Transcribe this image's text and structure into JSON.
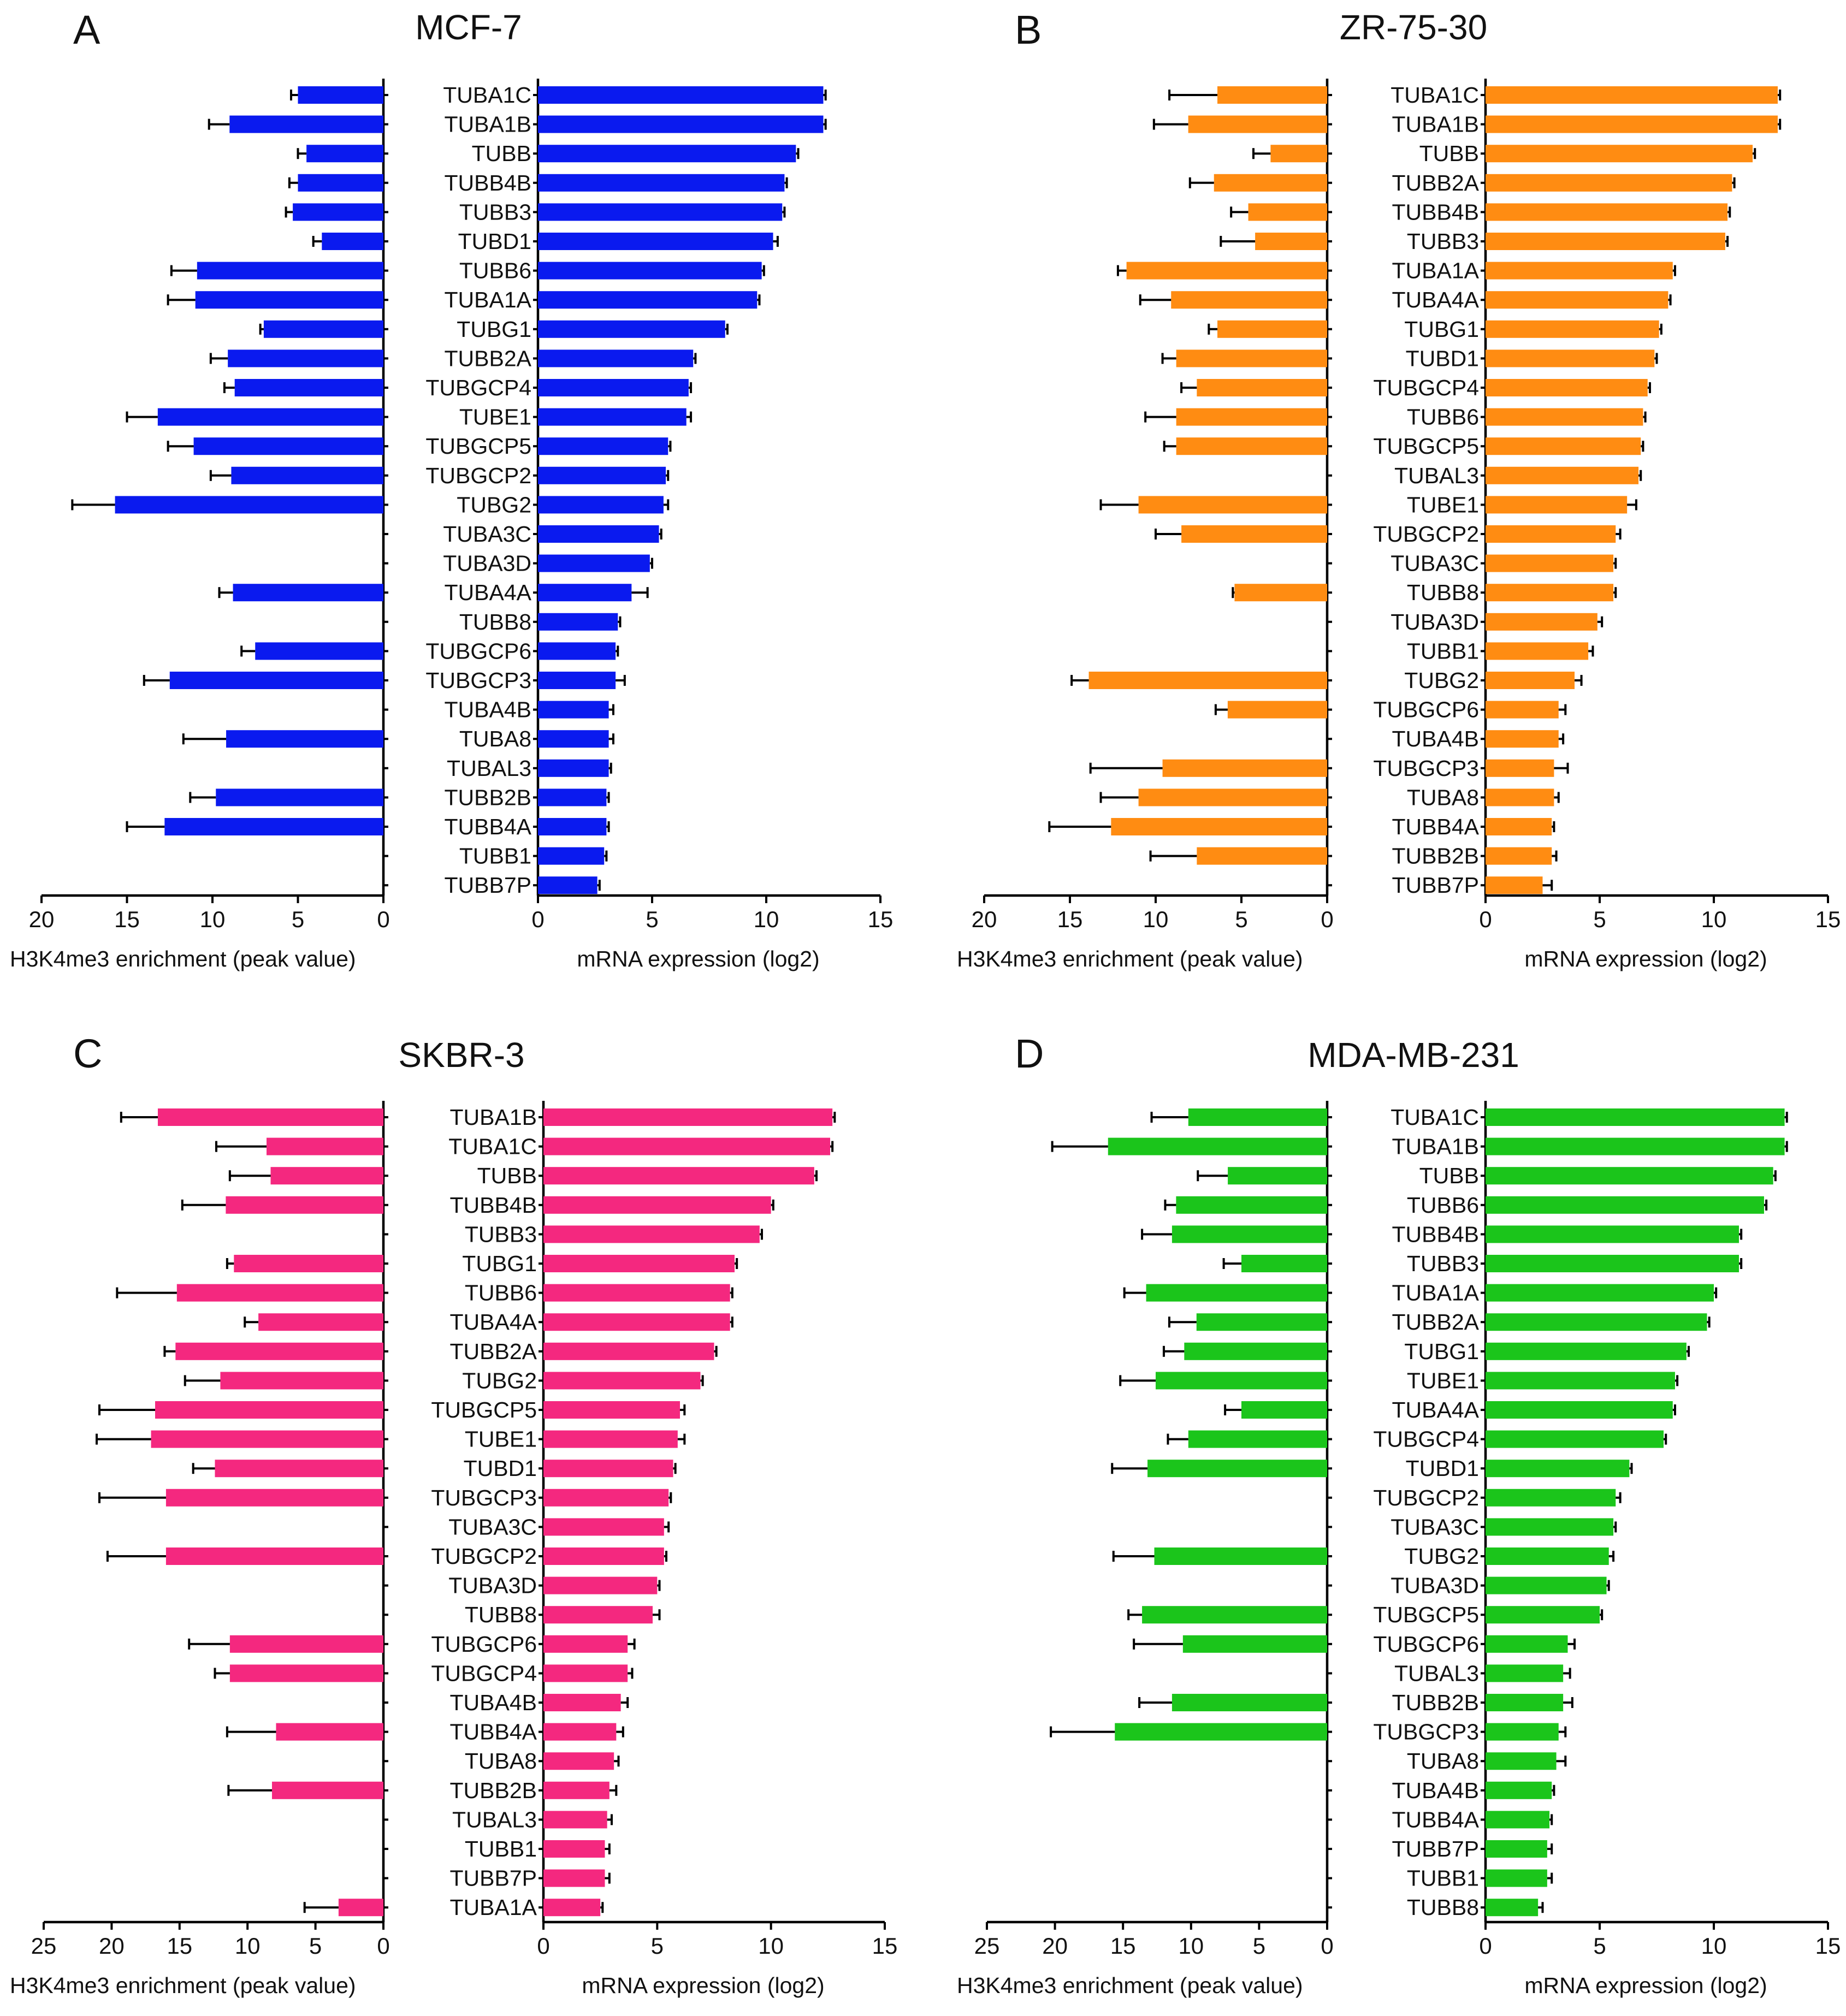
{
  "chart_data": [
    {
      "type": "bar",
      "panel": "A",
      "title": "MCF-7",
      "color": "#0a1aef",
      "left_xlabel": "H3K4me3 enrichment (peak value)",
      "right_xlabel": "mRNA expression (log2)",
      "left_xlim": [
        0,
        20
      ],
      "left_ticks": [
        "20",
        "15",
        "10",
        "5",
        "0"
      ],
      "right_xlim": [
        0,
        15
      ],
      "right_ticks": [
        "0",
        "5",
        "10",
        "15"
      ],
      "categories": [
        "TUBA1C",
        "TUBA1B",
        "TUBB",
        "TUBB4B",
        "TUBB3",
        "TUBD1",
        "TUBB6",
        "TUBA1A",
        "TUBG1",
        "TUBB2A",
        "TUBGCP4",
        "TUBE1",
        "TUBGCP5",
        "TUBGCP2",
        "TUBG2",
        "TUBA3C",
        "TUBA3D",
        "TUBA4A",
        "TUBB8",
        "TUBGCP6",
        "TUBGCP3",
        "TUBA4B",
        "TUBA8",
        "TUBAL3",
        "TUBB2B",
        "TUBB4A",
        "TUBB1",
        "TUBB7P"
      ],
      "h3k4me3": [
        5.0,
        9.0,
        4.5,
        5.0,
        5.3,
        3.6,
        10.9,
        11.0,
        7.0,
        9.1,
        8.7,
        13.2,
        11.1,
        8.9,
        15.7,
        0,
        0,
        8.8,
        0,
        7.5,
        12.5,
        0,
        9.2,
        0,
        9.8,
        12.8,
        0,
        0
      ],
      "h3k4me3_err": [
        0.4,
        1.2,
        0.5,
        0.5,
        0.4,
        0.5,
        1.5,
        1.6,
        0.2,
        1.0,
        0.6,
        1.8,
        1.5,
        1.2,
        2.5,
        0,
        0,
        0.8,
        0,
        0.8,
        1.5,
        0,
        2.5,
        0,
        1.5,
        2.2,
        0,
        0
      ],
      "mrna": [
        12.5,
        12.5,
        11.3,
        10.8,
        10.7,
        10.3,
        9.8,
        9.6,
        8.2,
        6.8,
        6.6,
        6.5,
        5.7,
        5.6,
        5.5,
        5.3,
        4.9,
        4.1,
        3.5,
        3.4,
        3.4,
        3.1,
        3.1,
        3.1,
        3.0,
        3.0,
        2.9,
        2.6
      ],
      "mrna_err": [
        0.1,
        0.1,
        0.1,
        0.1,
        0.1,
        0.2,
        0.1,
        0.1,
        0.1,
        0.1,
        0.1,
        0.2,
        0.1,
        0.1,
        0.2,
        0.1,
        0.1,
        0.7,
        0.1,
        0.1,
        0.4,
        0.2,
        0.2,
        0.1,
        0.1,
        0.1,
        0.1,
        0.1
      ]
    },
    {
      "type": "bar",
      "panel": "B",
      "title": "ZR-75-30",
      "color": "#ff8c12",
      "left_xlabel": "H3K4me3 enrichment (peak value)",
      "right_xlabel": "mRNA expression (log2)",
      "left_xlim": [
        0,
        20
      ],
      "left_ticks": [
        "20",
        "15",
        "10",
        "5",
        "0"
      ],
      "right_xlim": [
        0,
        15
      ],
      "right_ticks": [
        "0",
        "5",
        "10",
        "15"
      ],
      "categories": [
        "TUBA1C",
        "TUBA1B",
        "TUBB",
        "TUBB2A",
        "TUBB4B",
        "TUBB3",
        "TUBA1A",
        "TUBA4A",
        "TUBG1",
        "TUBD1",
        "TUBGCP4",
        "TUBB6",
        "TUBGCP5",
        "TUBAL3",
        "TUBE1",
        "TUBGCP2",
        "TUBA3C",
        "TUBB8",
        "TUBA3D",
        "TUBB1",
        "TUBG2",
        "TUBGCP6",
        "TUBA4B",
        "TUBGCP3",
        "TUBA8",
        "TUBB4A",
        "TUBB2B",
        "TUBB7P"
      ],
      "h3k4me3": [
        6.4,
        8.1,
        3.3,
        6.6,
        4.6,
        4.2,
        11.7,
        9.1,
        6.4,
        8.8,
        7.6,
        8.8,
        8.8,
        0,
        11.0,
        8.5,
        0,
        5.4,
        0,
        0,
        13.9,
        5.8,
        0,
        9.6,
        11.0,
        12.6,
        7.6,
        0
      ],
      "h3k4me3_err": [
        2.8,
        2.0,
        1.0,
        1.4,
        1.0,
        2.0,
        0.5,
        1.8,
        0.5,
        0.8,
        0.9,
        1.8,
        0.7,
        0,
        2.2,
        1.5,
        0,
        0.1,
        0,
        0,
        1.0,
        0.7,
        0,
        4.2,
        2.2,
        3.6,
        2.7,
        0
      ],
      "mrna": [
        12.8,
        12.8,
        11.7,
        10.8,
        10.6,
        10.5,
        8.2,
        8.0,
        7.6,
        7.4,
        7.1,
        6.9,
        6.8,
        6.7,
        6.2,
        5.7,
        5.6,
        5.6,
        4.9,
        4.5,
        3.9,
        3.2,
        3.2,
        3.0,
        3.0,
        2.9,
        2.9,
        2.5
      ],
      "mrna_err": [
        0.1,
        0.1,
        0.1,
        0.1,
        0.1,
        0.1,
        0.1,
        0.1,
        0.1,
        0.1,
        0.1,
        0.1,
        0.1,
        0.1,
        0.4,
        0.2,
        0.1,
        0.1,
        0.2,
        0.2,
        0.3,
        0.3,
        0.2,
        0.6,
        0.2,
        0.1,
        0.2,
        0.4
      ]
    },
    {
      "type": "bar",
      "panel": "C",
      "title": "SKBR-3",
      "color": "#f4287f",
      "left_xlabel": "H3K4me3 enrichment (peak value)",
      "right_xlabel": "mRNA expression (log2)",
      "left_xlim": [
        0,
        25
      ],
      "left_ticks": [
        "25",
        "20",
        "15",
        "10",
        "5",
        "0"
      ],
      "right_xlim": [
        0,
        15
      ],
      "right_ticks": [
        "0",
        "5",
        "10",
        "15"
      ],
      "categories": [
        "TUBA1B",
        "TUBA1C",
        "TUBB",
        "TUBB4B",
        "TUBB3",
        "TUBG1",
        "TUBB6",
        "TUBA4A",
        "TUBB2A",
        "TUBG2",
        "TUBGCP5",
        "TUBE1",
        "TUBD1",
        "TUBGCP3",
        "TUBA3C",
        "TUBGCP2",
        "TUBA3D",
        "TUBB8",
        "TUBGCP6",
        "TUBGCP4",
        "TUBA4B",
        "TUBB4A",
        "TUBA8",
        "TUBB2B",
        "TUBAL3",
        "TUBB1",
        "TUBB7P",
        "TUBA1A"
      ],
      "h3k4me3": [
        16.6,
        8.6,
        8.3,
        11.6,
        0,
        11.0,
        15.2,
        9.2,
        15.3,
        12.0,
        16.8,
        17.1,
        12.4,
        16.0,
        0,
        16.0,
        0,
        0,
        11.3,
        11.3,
        0,
        7.9,
        0,
        8.2,
        0,
        0,
        0,
        3.3
      ],
      "h3k4me3_err": [
        2.7,
        3.7,
        3.0,
        3.2,
        0,
        0.5,
        4.4,
        1.0,
        0.8,
        2.6,
        4.1,
        4.0,
        1.6,
        4.9,
        0,
        4.3,
        0,
        0,
        3.0,
        1.1,
        0,
        3.6,
        0,
        3.2,
        0,
        0,
        0,
        2.5
      ],
      "mrna": [
        12.7,
        12.6,
        11.9,
        10.0,
        9.5,
        8.4,
        8.2,
        8.2,
        7.5,
        6.9,
        6.0,
        5.9,
        5.7,
        5.5,
        5.3,
        5.3,
        5.0,
        4.8,
        3.7,
        3.7,
        3.4,
        3.2,
        3.1,
        2.9,
        2.8,
        2.7,
        2.7,
        2.5
      ],
      "mrna_err": [
        0.1,
        0.1,
        0.1,
        0.1,
        0.1,
        0.1,
        0.1,
        0.1,
        0.1,
        0.1,
        0.2,
        0.3,
        0.1,
        0.1,
        0.2,
        0.1,
        0.1,
        0.3,
        0.3,
        0.2,
        0.3,
        0.3,
        0.2,
        0.3,
        0.2,
        0.2,
        0.2,
        0.1
      ]
    },
    {
      "type": "bar",
      "panel": "D",
      "title": "MDA-MB-231",
      "color": "#1bc51b",
      "left_xlabel": "H3K4me3 enrichment (peak value)",
      "right_xlabel": "mRNA expression (log2)",
      "left_xlim": [
        0,
        25
      ],
      "left_ticks": [
        "25",
        "20",
        "15",
        "10",
        "5",
        "0"
      ],
      "right_xlim": [
        0,
        15
      ],
      "right_ticks": [
        "0",
        "5",
        "10",
        "15"
      ],
      "categories": [
        "TUBA1C",
        "TUBA1B",
        "TUBB",
        "TUBB6",
        "TUBB4B",
        "TUBB3",
        "TUBA1A",
        "TUBB2A",
        "TUBG1",
        "TUBE1",
        "TUBA4A",
        "TUBGCP4",
        "TUBD1",
        "TUBGCP2",
        "TUBA3C",
        "TUBG2",
        "TUBA3D",
        "TUBGCP5",
        "TUBGCP6",
        "TUBAL3",
        "TUBB2B",
        "TUBGCP3",
        "TUBA8",
        "TUBA4B",
        "TUBB4A",
        "TUBB7P",
        "TUBB1",
        "TUBB8"
      ],
      "h3k4me3": [
        10.2,
        16.1,
        7.3,
        11.1,
        11.4,
        6.3,
        13.3,
        9.6,
        10.5,
        12.6,
        6.3,
        10.2,
        13.2,
        0,
        0,
        12.7,
        0,
        13.6,
        10.6,
        0,
        11.4,
        15.6,
        0,
        0,
        0,
        0,
        0,
        0
      ],
      "h3k4me3_err": [
        2.7,
        4.1,
        2.2,
        0.8,
        2.2,
        1.3,
        1.6,
        2.0,
        1.5,
        2.6,
        1.2,
        1.5,
        2.6,
        0,
        0,
        3.0,
        0,
        1.0,
        3.6,
        0,
        2.4,
        4.7,
        0,
        0,
        0,
        0,
        0,
        0
      ],
      "mrna": [
        13.1,
        13.1,
        12.6,
        12.2,
        11.1,
        11.1,
        10.0,
        9.7,
        8.8,
        8.3,
        8.2,
        7.8,
        6.3,
        5.7,
        5.6,
        5.4,
        5.3,
        5.0,
        3.6,
        3.4,
        3.4,
        3.2,
        3.1,
        2.9,
        2.8,
        2.7,
        2.7,
        2.3
      ],
      "mrna_err": [
        0.1,
        0.1,
        0.1,
        0.1,
        0.1,
        0.1,
        0.1,
        0.1,
        0.1,
        0.1,
        0.1,
        0.1,
        0.1,
        0.2,
        0.1,
        0.2,
        0.1,
        0.1,
        0.3,
        0.3,
        0.4,
        0.3,
        0.4,
        0.1,
        0.1,
        0.2,
        0.2,
        0.2
      ]
    }
  ]
}
